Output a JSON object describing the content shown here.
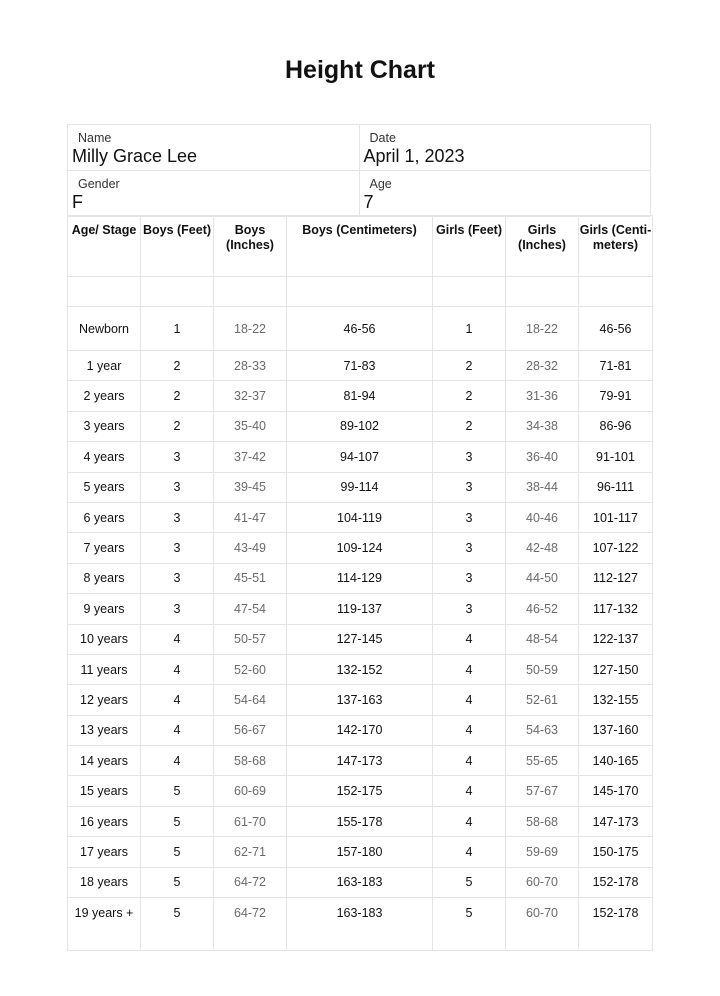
{
  "title": "Height Chart",
  "info": {
    "name_label": "Name",
    "name": "Milly Grace Lee",
    "date_label": "Date",
    "date": "April 1, 2023",
    "gender_label": "Gender",
    "gender": "F",
    "age_label": "Age",
    "age": "7"
  },
  "columns": [
    "Age/ Stage",
    "Boys (Feet)",
    "Boys (Inches)",
    "Boys (Centimeters)",
    "Girls (Feet)",
    "Girls (Inches)",
    "Girls (Centi-meters)"
  ],
  "rows": [
    [
      "Newborn",
      "1",
      "18-22",
      "46-56",
      "1",
      "18-22",
      "46-56"
    ],
    [
      "1 year",
      "2",
      "28-33",
      "71-83",
      "2",
      "28-32",
      "71-81"
    ],
    [
      "2 years",
      "2",
      "32-37",
      "81-94",
      "2",
      "31-36",
      "79-91"
    ],
    [
      "3 years",
      "2",
      "35-40",
      "89-102",
      "2",
      "34-38",
      "86-96"
    ],
    [
      "4 years",
      "3",
      "37-42",
      "94-107",
      "3",
      "36-40",
      "91-101"
    ],
    [
      "5 years",
      "3",
      "39-45",
      "99-114",
      "3",
      "38-44",
      "96-111"
    ],
    [
      "6 years",
      "3",
      "41-47",
      "104-119",
      "3",
      "40-46",
      "101-117"
    ],
    [
      "7 years",
      "3",
      "43-49",
      "109-124",
      "3",
      "42-48",
      "107-122"
    ],
    [
      "8 years",
      "3",
      "45-51",
      "114-129",
      "3",
      "44-50",
      "112-127"
    ],
    [
      "9 years",
      "3",
      "47-54",
      "119-137",
      "3",
      "46-52",
      "117-132"
    ],
    [
      "10 years",
      "4",
      "50-57",
      "127-145",
      "4",
      "48-54",
      "122-137"
    ],
    [
      "11 years",
      "4",
      "52-60",
      "132-152",
      "4",
      "50-59",
      "127-150"
    ],
    [
      "12 years",
      "4",
      "54-64",
      "137-163",
      "4",
      "52-61",
      "132-155"
    ],
    [
      "13 years",
      "4",
      "56-67",
      "142-170",
      "4",
      "54-63",
      "137-160"
    ],
    [
      "14 years",
      "4",
      "58-68",
      "147-173",
      "4",
      "55-65",
      "140-165"
    ],
    [
      "15 years",
      "5",
      "60-69",
      "152-175",
      "4",
      "57-67",
      "145-170"
    ],
    [
      "16 years",
      "5",
      "61-70",
      "155-178",
      "4",
      "58-68",
      "147-173"
    ],
    [
      "17 years",
      "5",
      "62-71",
      "157-180",
      "4",
      "59-69",
      "150-175"
    ],
    [
      "18 years",
      "5",
      "64-72",
      "163-183",
      "5",
      "60-70",
      "152-178"
    ],
    [
      "19 years +",
      "5",
      "64-72",
      "163-183",
      "5",
      "60-70",
      "152-178"
    ]
  ]
}
